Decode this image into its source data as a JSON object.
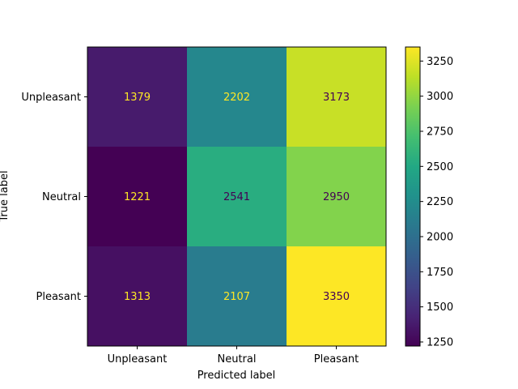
{
  "chart_data": {
    "type": "heatmap",
    "title": "",
    "xlabel": "Predicted label",
    "ylabel": "True label",
    "x_categories": [
      "Unpleasant",
      "Neutral",
      "Pleasant"
    ],
    "y_categories": [
      "Unpleasant",
      "Neutral",
      "Pleasant"
    ],
    "values": [
      [
        1379,
        2202,
        3173
      ],
      [
        1221,
        2541,
        2950
      ],
      [
        1313,
        2107,
        3350
      ]
    ],
    "colormap": "viridis",
    "colorbar": {
      "vmin": 1221,
      "vmax": 3350,
      "ticks": [
        1250,
        1500,
        1750,
        2000,
        2250,
        2500,
        2750,
        3000,
        3250
      ]
    },
    "grid": false,
    "annotation_colors": {
      "dark_cell_text": "#fde725",
      "light_cell_text": "#440154"
    }
  }
}
